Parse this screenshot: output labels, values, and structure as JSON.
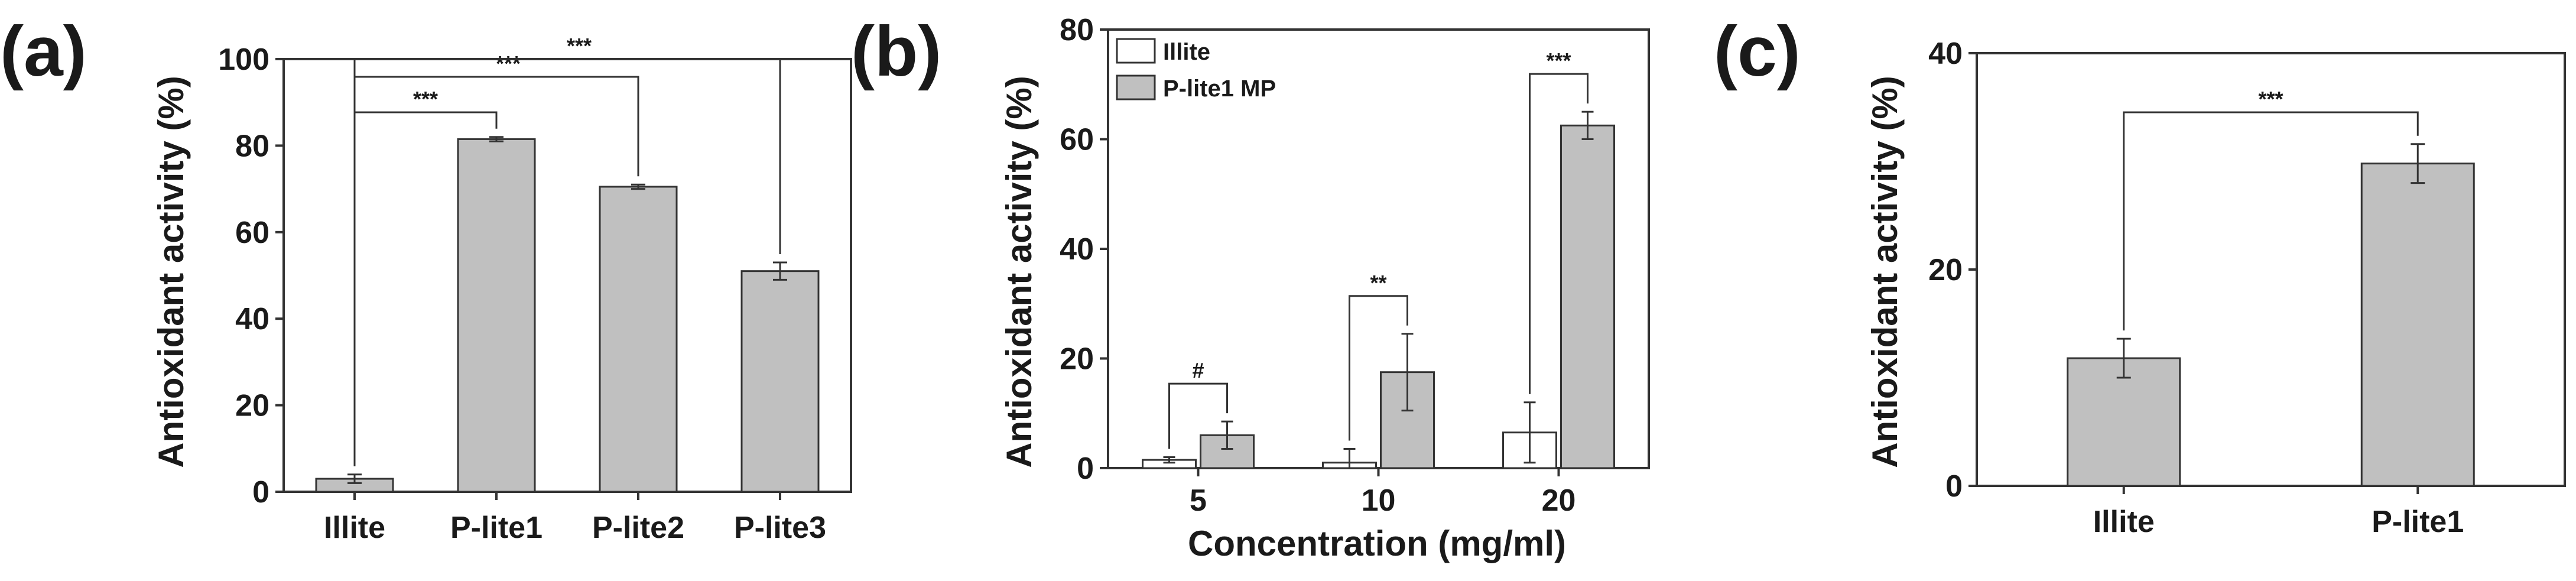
{
  "chart_data": [
    {
      "panel": "(a)",
      "type": "bar",
      "categories": [
        "Illite",
        "P-lite1",
        "P-lite2",
        "P-lite3"
      ],
      "values": [
        3,
        81.5,
        70.5,
        51
      ],
      "errors": [
        1,
        0.5,
        0.5,
        2
      ],
      "ylabel": "Antioxidant activity (%)",
      "xlabel": "",
      "ylim": [
        0,
        100
      ],
      "yticks": [
        0,
        20,
        40,
        60,
        80,
        100
      ],
      "bar_color": "#c0c0c0",
      "significance": [
        {
          "from": 0,
          "to": 1,
          "label": "***"
        },
        {
          "from": 0,
          "to": 2,
          "label": "***"
        },
        {
          "from": 0,
          "to": 3,
          "label": "***"
        }
      ]
    },
    {
      "panel": "(b)",
      "type": "bar",
      "categories": [
        "5",
        "10",
        "20"
      ],
      "series": [
        {
          "name": "Illite",
          "values": [
            1.5,
            1,
            6.5
          ],
          "errors": [
            0.5,
            2.5,
            5.5
          ],
          "color": "#ffffff"
        },
        {
          "name": "P-lite1 MP",
          "values": [
            6,
            17.5,
            62.5
          ],
          "errors": [
            2.5,
            7,
            2.5
          ],
          "color": "#c0c0c0"
        }
      ],
      "ylabel": "Antioxidant activity (%)",
      "xlabel": "Concentration (mg/ml)",
      "ylim": [
        0,
        80
      ],
      "yticks": [
        0,
        20,
        40,
        60,
        80
      ],
      "legend_position": "top-left",
      "significance": [
        {
          "group": 0,
          "label": "#"
        },
        {
          "group": 1,
          "label": "**"
        },
        {
          "group": 2,
          "label": "***"
        }
      ]
    },
    {
      "panel": "(c)",
      "type": "bar",
      "categories": [
        "Illite",
        "P-lite1"
      ],
      "values": [
        11.8,
        29.8
      ],
      "errors": [
        1.8,
        1.8
      ],
      "ylabel": "Antioxidant activity (%)",
      "xlabel": "",
      "ylim": [
        0,
        40
      ],
      "yticks": [
        0,
        20,
        40
      ],
      "bar_color": "#c0c0c0",
      "significance": [
        {
          "from": 0,
          "to": 1,
          "label": "***"
        }
      ]
    }
  ]
}
